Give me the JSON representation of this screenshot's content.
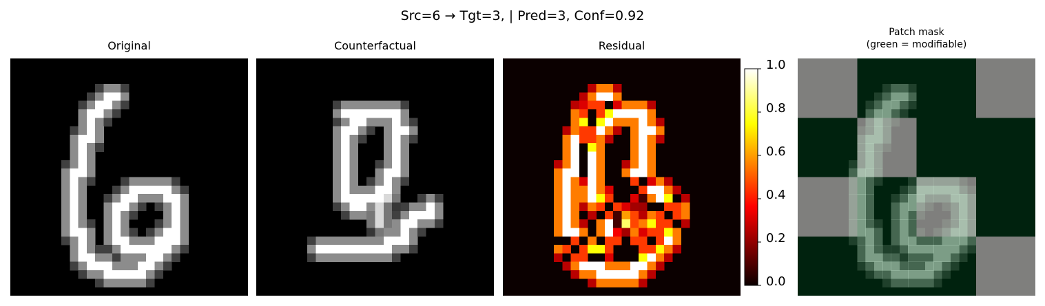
{
  "suptitle": "Src=6 → Tgt=3, | Pred=3, Conf=0.92",
  "panels": {
    "original": {
      "title": "Original"
    },
    "counterfactual": {
      "title": "Counterfactual"
    },
    "residual": {
      "title": "Residual"
    },
    "mask": {
      "title_line1": "Patch mask",
      "title_line2": "(green = modifiable)"
    }
  },
  "chart_data": [
    {
      "type": "heatmap",
      "title": "Original",
      "colormap": "gray",
      "grid": "28x28",
      "axes": "off",
      "image": "handwritten digit 6"
    },
    {
      "type": "heatmap",
      "title": "Counterfactual",
      "colormap": "gray",
      "grid": "28x28",
      "axes": "off",
      "image": "handwritten digit resembling 3"
    },
    {
      "type": "heatmap",
      "title": "Residual",
      "colormap": "hot",
      "grid": "28x28",
      "axes": "off",
      "colorbar": {
        "range": [
          0.0,
          1.0
        ],
        "ticks": [
          "0.0",
          "0.2",
          "0.4",
          "0.6",
          "0.8",
          "1.0"
        ]
      }
    },
    {
      "type": "heatmap",
      "title": "Patch mask\n(green = modifiable)",
      "grid": "4x4 patches",
      "axes": "off",
      "mask_rows": [
        [
          0,
          1,
          1,
          0
        ],
        [
          1,
          0,
          1,
          1
        ],
        [
          0,
          1,
          0,
          1
        ],
        [
          1,
          1,
          1,
          0
        ]
      ],
      "colors": {
        "modifiable": "#00220e",
        "fixed": "#7f7f7d"
      }
    }
  ],
  "colors": {
    "hot_dark": "#0b0000",
    "mask_green": "#00220e",
    "mask_gray": "#7f7f7d"
  }
}
